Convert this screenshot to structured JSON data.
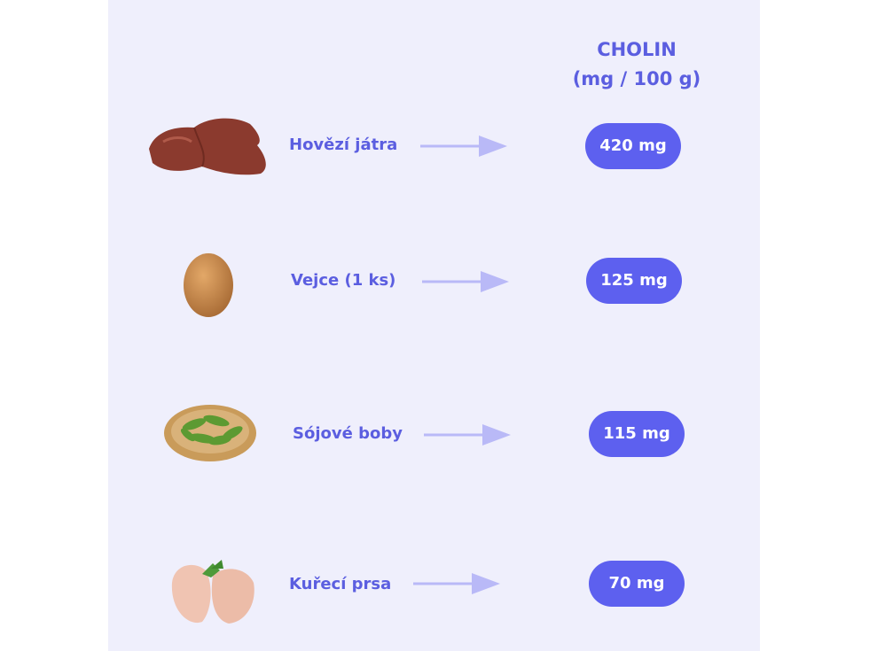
{
  "header": {
    "title": "CHOLIN",
    "unit": "(mg / 100 g)"
  },
  "colors": {
    "background": "#efeffc",
    "accent": "#5d60ef",
    "text": "#5b5ee0",
    "arrow": "#b9b9f7"
  },
  "items": [
    {
      "label": "Hovězí játra",
      "value": "420 mg",
      "icon": "beef-liver-icon"
    },
    {
      "label": "Vejce (1 ks)",
      "value": "125 mg",
      "icon": "egg-icon"
    },
    {
      "label": "Sójové boby",
      "value": "115 mg",
      "icon": "soybeans-icon"
    },
    {
      "label": "Kuřecí prsa",
      "value": "70 mg",
      "icon": "chicken-breast-icon"
    }
  ]
}
